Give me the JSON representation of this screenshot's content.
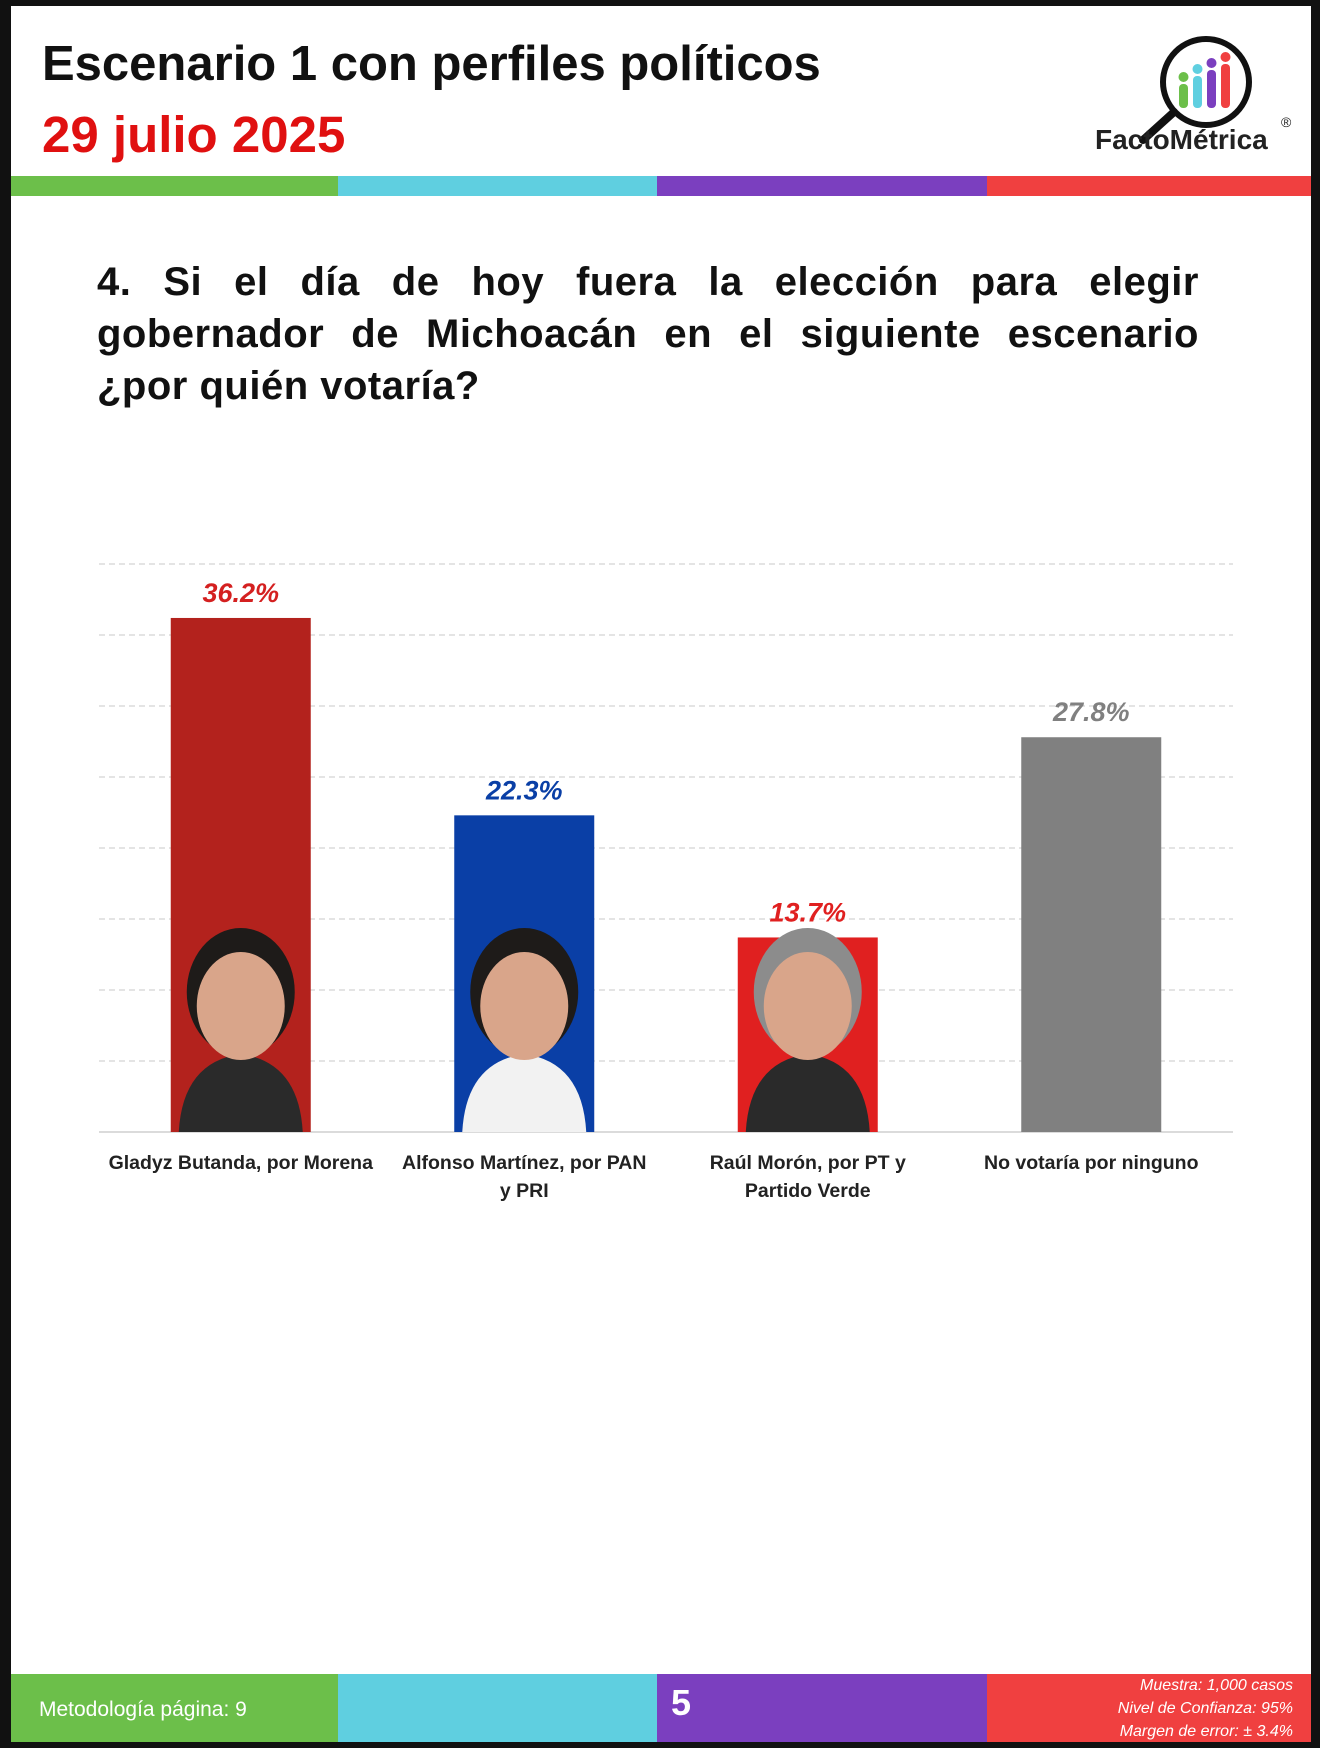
{
  "header": {
    "title": "Escenario 1 con perfiles políticos",
    "date": "29 julio 2025",
    "logo_text": "FactoMétrica",
    "logo_registered": "®"
  },
  "colors": {
    "green": "#6cbf4a",
    "cyan": "#5fcfe0",
    "purple": "#7b3fbf",
    "red": "#f04040",
    "morena": "#b3221d",
    "panpri": "#0a3fa6",
    "ptverde": "#e02020",
    "ninguno": "#808080"
  },
  "question": "4. Si el día de hoy fuera la elección para elegir gobernador de Michoacán en el siguiente escenario ¿por quién votaría?",
  "chart_data": {
    "type": "bar",
    "title": "",
    "xlabel": "",
    "ylabel": "",
    "ylim": [
      0,
      40
    ],
    "grid": true,
    "categories": [
      "Gladyz Butanda, por Morena",
      "Alfonso Martínez, por PAN y PRI",
      "Raúl Morón, por PT y Partido Verde",
      "No votaría por ninguno"
    ],
    "values": [
      36.2,
      22.3,
      13.7,
      27.8
    ],
    "data_labels": [
      "36.2%",
      "22.3%",
      "13.7%",
      "27.8%"
    ],
    "bar_colors": [
      "#b3221d",
      "#0a3fa6",
      "#e02020",
      "#808080"
    ],
    "label_colors": [
      "#d42020",
      "#0a3fa6",
      "#e02020",
      "#808080"
    ]
  },
  "footer": {
    "methodology": "Metodología página: 9",
    "page_number": "5",
    "sample": "Muestra:  1,000 casos",
    "confidence": "Nivel de Confianza: 95%",
    "margin": "Margen de error: ± 3.4%"
  }
}
